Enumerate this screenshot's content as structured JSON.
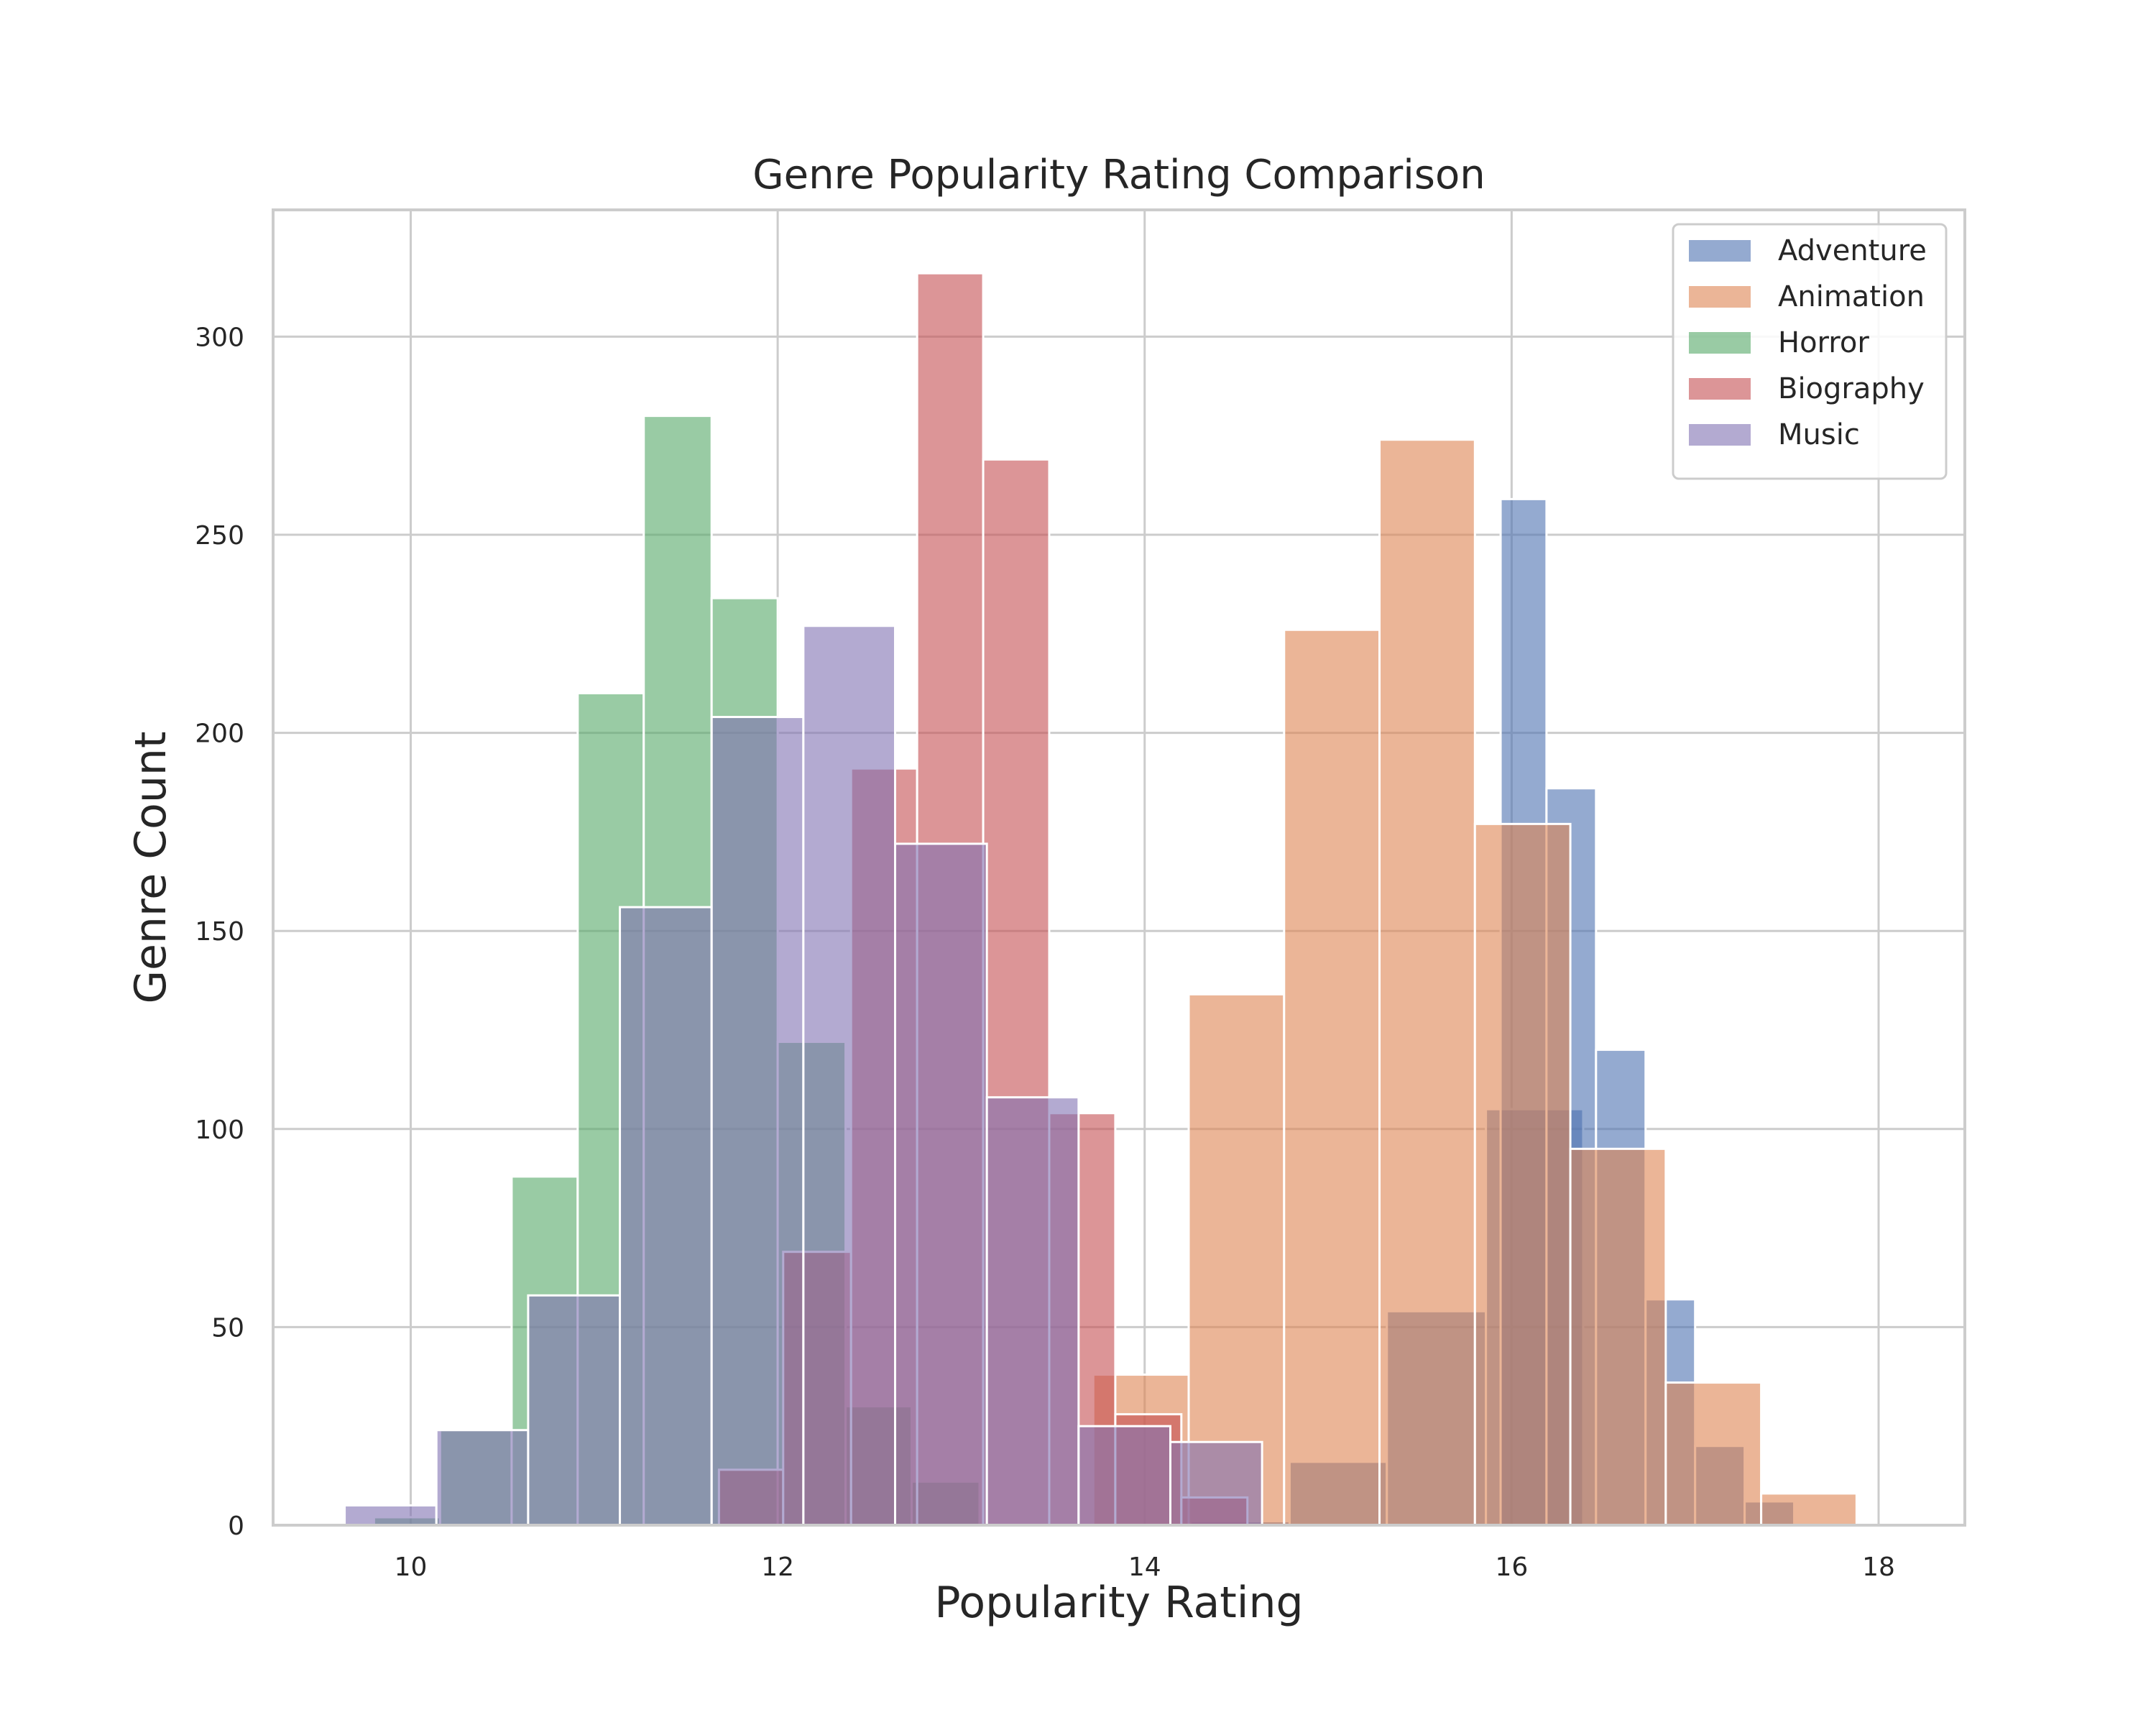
{
  "chart_data": {
    "type": "bar",
    "subtype": "histogram",
    "title": "Genre Popularity Rating Comparison",
    "xlabel": "Popularity Rating",
    "ylabel": "Genre Count",
    "xlim": [
      9.25,
      18.47
    ],
    "ylim": [
      0,
      332
    ],
    "xticks": [
      10,
      12,
      14,
      16,
      18
    ],
    "yticks": [
      0,
      50,
      100,
      150,
      200,
      250,
      300
    ],
    "grid": true,
    "legend_position": "top-right",
    "opacity": 0.6,
    "series": [
      {
        "name": "Adventure",
        "color": "#4c72b0",
        "bins": [
          [
            14.25,
            14.79,
            1
          ],
          [
            14.79,
            15.32,
            16
          ],
          [
            15.32,
            15.86,
            54
          ],
          [
            15.86,
            16.39,
            105
          ],
          [
            15.94,
            16.19,
            259
          ],
          [
            16.19,
            16.46,
            186
          ],
          [
            16.46,
            16.73,
            120
          ],
          [
            16.73,
            17.0,
            57
          ],
          [
            17.0,
            17.27,
            20
          ],
          [
            17.27,
            17.54,
            6
          ]
        ]
      },
      {
        "name": "Animation",
        "color": "#dd8452",
        "bins": [
          [
            13.72,
            14.24,
            38
          ],
          [
            14.24,
            14.76,
            134
          ],
          [
            14.76,
            15.28,
            226
          ],
          [
            15.28,
            15.8,
            274
          ],
          [
            15.8,
            16.32,
            177
          ],
          [
            16.32,
            16.84,
            95
          ],
          [
            16.84,
            17.36,
            36
          ],
          [
            17.36,
            17.88,
            8
          ]
        ]
      },
      {
        "name": "Horror",
        "color": "#55a868",
        "bins": [
          [
            9.8,
            10.16,
            2
          ],
          [
            10.16,
            10.55,
            24
          ],
          [
            10.55,
            10.91,
            88
          ],
          [
            10.91,
            11.27,
            210
          ],
          [
            11.27,
            11.64,
            280
          ],
          [
            11.64,
            12.0,
            234
          ],
          [
            12.0,
            12.37,
            122
          ],
          [
            12.37,
            12.73,
            30
          ],
          [
            12.73,
            13.1,
            11
          ]
        ]
      },
      {
        "name": "Biography",
        "color": "#c44e52",
        "bins": [
          [
            11.68,
            12.03,
            14
          ],
          [
            12.03,
            12.4,
            69
          ],
          [
            12.4,
            12.76,
            191
          ],
          [
            12.76,
            13.12,
            316
          ],
          [
            13.12,
            13.48,
            269
          ],
          [
            13.48,
            13.84,
            104
          ],
          [
            13.84,
            14.2,
            28
          ],
          [
            14.2,
            14.56,
            7
          ]
        ]
      },
      {
        "name": "Music",
        "color": "#8172b3",
        "bins": [
          [
            9.64,
            10.14,
            5
          ],
          [
            10.14,
            10.64,
            24
          ],
          [
            10.64,
            11.14,
            58
          ],
          [
            11.14,
            11.64,
            156
          ],
          [
            11.64,
            12.14,
            204
          ],
          [
            12.14,
            12.64,
            227
          ],
          [
            12.64,
            13.14,
            172
          ],
          [
            13.14,
            13.64,
            108
          ],
          [
            13.64,
            14.14,
            25
          ],
          [
            14.14,
            14.64,
            21
          ]
        ]
      }
    ]
  }
}
